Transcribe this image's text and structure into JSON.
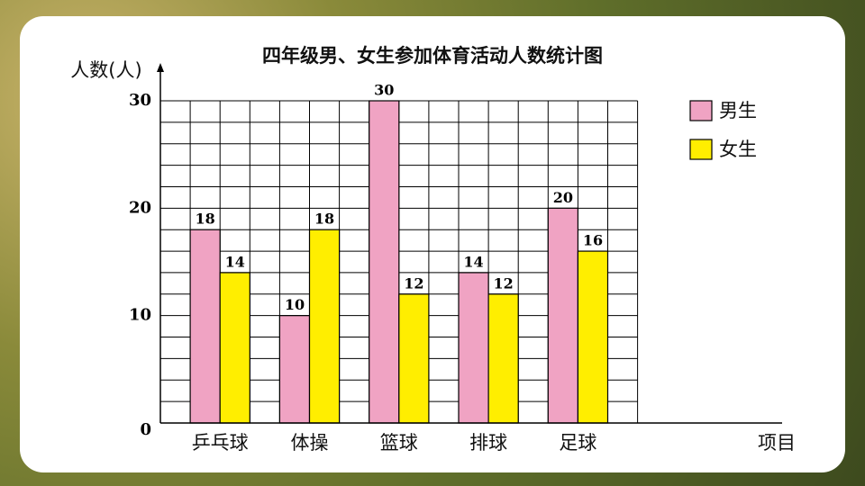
{
  "chart_data": {
    "type": "bar",
    "title": "四年级男、女生参加体育活动人数统计图",
    "y_label": "人数(人)",
    "x_label": "项目",
    "categories": [
      "乒乓球",
      "体操",
      "篮球",
      "排球",
      "足球"
    ],
    "series": [
      {
        "name": "男生",
        "color": "#f0a3c3",
        "values": [
          18,
          10,
          30,
          14,
          20
        ]
      },
      {
        "name": "女生",
        "color": "#ffee00",
        "values": [
          14,
          18,
          12,
          12,
          16
        ]
      }
    ],
    "ylim": [
      0,
      30
    ],
    "yticks": [
      0,
      10,
      20,
      30
    ],
    "grid": true,
    "legend": "right"
  }
}
